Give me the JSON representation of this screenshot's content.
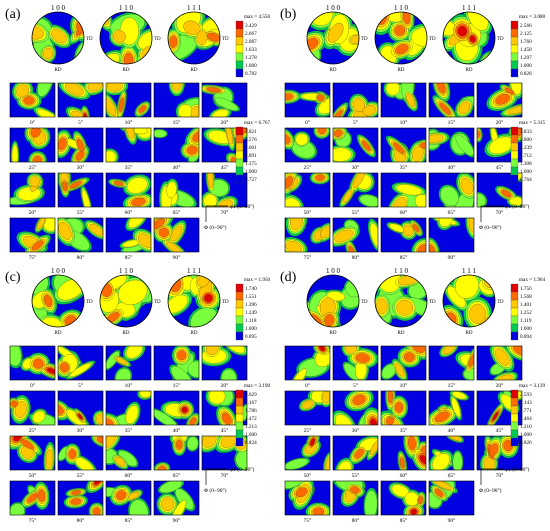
{
  "panels": [
    {
      "label": "(a)",
      "pf_max": "max = 4.550",
      "pf_levels": [
        "3.429",
        "2.667",
        "2.087",
        "1.633",
        "1.278",
        "1.000",
        "0.782"
      ],
      "odf_max": "max = 6.767",
      "odf_levels": [
        "4.821",
        "3.576",
        "2.601",
        "1.891",
        "1.375",
        "1.000",
        "0.727"
      ],
      "has_axes": true,
      "seed": 11
    },
    {
      "label": "(b)",
      "pf_max": "max = 3.088",
      "pf_levels": [
        "2.566",
        "2.125",
        "1.760",
        "1.458",
        "1.207",
        "1.000",
        "0.828"
      ],
      "odf_max": "max = 5.315",
      "odf_levels": [
        "3.833",
        "2.800",
        "2.239",
        "1.712",
        "1.308",
        "1.000",
        "0.764"
      ],
      "has_axes": true,
      "seed": 23
    },
    {
      "label": "(c)",
      "pf_max": "max = 1.950",
      "pf_levels": [
        "1.740",
        "1.551",
        "1.396",
        "1.249",
        "1.118",
        "1.000",
        "0.895"
      ],
      "odf_max": "max = 3.190",
      "odf_levels": [
        "2.629",
        "2.167",
        "1.786",
        "1.472",
        "1.213",
        "1.000",
        "0.824"
      ],
      "has_axes": true,
      "seed": 37
    },
    {
      "label": "(d)",
      "pf_max": "max = 1.964",
      "pf_levels": [
        "1.756",
        "1.568",
        "1.401",
        "1.252",
        "1.119",
        "1.000",
        "0.894"
      ],
      "odf_max": "max = 3.139",
      "odf_levels": [
        "2.593",
        "2.143",
        "1.771",
        "1.464",
        "1.210",
        "1.000",
        "0.826"
      ],
      "has_axes": true,
      "seed": 51
    }
  ],
  "pole_labels": [
    "1 0 0",
    "1 1 0",
    "1 1 1"
  ],
  "td_label": "TD",
  "rd_label": "RD",
  "sections": [
    "0°",
    "5°",
    "10°",
    "15°",
    "20°",
    "25°",
    "30°",
    "35°",
    "40°",
    "45°",
    "50°",
    "55°",
    "60°",
    "65°",
    "70°",
    "75°",
    "80°",
    "85°",
    "90°"
  ],
  "phi1_label": "φ1 (0~90°)",
  "Phi_label": "Φ (0~90°)",
  "colors": [
    "#e00000",
    "#ff6a00",
    "#ffc800",
    "#ffff00",
    "#7aff3c",
    "#00c850",
    "#0000e0"
  ]
}
